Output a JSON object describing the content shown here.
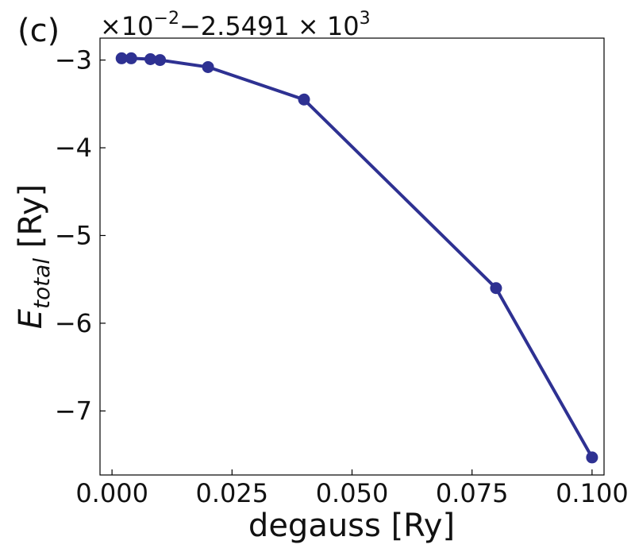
{
  "panel_label": "(c)",
  "offset_text": "×10⁻²−2.5491×10³",
  "offset_parts": {
    "times1": "×10",
    "exp1": "−2",
    "middle": "−2.5491 × 10",
    "exp2": "3"
  },
  "colors": {
    "series": "#2E3192",
    "axes": "#000000"
  },
  "chart_data": {
    "type": "line",
    "xlabel": "degauss [Ry]",
    "ylabel_base": "E",
    "ylabel_sub": "total",
    "ylabel_unit": "[Ry]",
    "xlim": [
      -0.0025,
      0.1025
    ],
    "ylim": [
      -7.73,
      -2.75
    ],
    "x_ticks": [
      0.0,
      0.025,
      0.05,
      0.075,
      0.1
    ],
    "x_tick_labels": [
      "0.000",
      "0.025",
      "0.050",
      "0.075",
      "0.100"
    ],
    "y_ticks": [
      -3,
      -4,
      -5,
      -6,
      -7
    ],
    "y_tick_labels": [
      "−3",
      "−4",
      "−5",
      "−6",
      "−7"
    ],
    "grid": false,
    "markers": true,
    "series": [
      {
        "x": [
          0.002,
          0.004,
          0.008,
          0.01,
          0.02,
          0.04,
          0.08,
          0.1
        ],
        "y": [
          -2.98,
          -2.98,
          -2.99,
          -3.0,
          -3.08,
          -3.45,
          -5.6,
          -7.53
        ]
      }
    ]
  }
}
